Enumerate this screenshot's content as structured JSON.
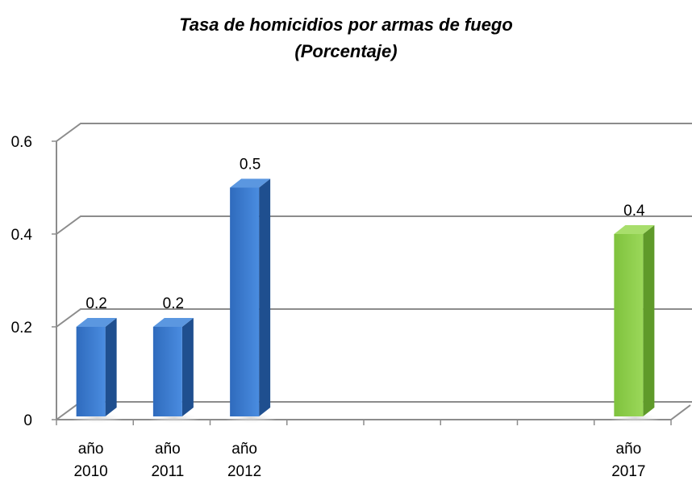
{
  "chart_data": {
    "type": "bar",
    "title": "Tasa de homicidios por armas de fuego",
    "subtitle": "(Porcentaje)",
    "categories": [
      [
        "año",
        "2010"
      ],
      [
        "año",
        "2011"
      ],
      [
        "año",
        "2012"
      ],
      [
        "",
        ""
      ],
      [
        "",
        ""
      ],
      [
        "",
        ""
      ],
      [
        "",
        ""
      ],
      [
        "año",
        "2017"
      ]
    ],
    "values": [
      0.2,
      0.2,
      0.5,
      null,
      null,
      null,
      null,
      0.4
    ],
    "data_labels": [
      "0.2",
      "0.2",
      "0.5",
      "",
      "",
      "",
      "",
      "0.4"
    ],
    "bar_colors": [
      "#3d7fd6",
      "#3d7fd6",
      "#3d7fd6",
      null,
      null,
      null,
      null,
      "#92d050"
    ],
    "ylim": [
      0,
      0.6
    ],
    "yticks": [
      0,
      0.2,
      0.4,
      0.6
    ],
    "ytick_labels": [
      "0",
      "0.2",
      "0.4",
      "0.6"
    ],
    "grid": true,
    "style": "3d-column",
    "legend": "none"
  }
}
